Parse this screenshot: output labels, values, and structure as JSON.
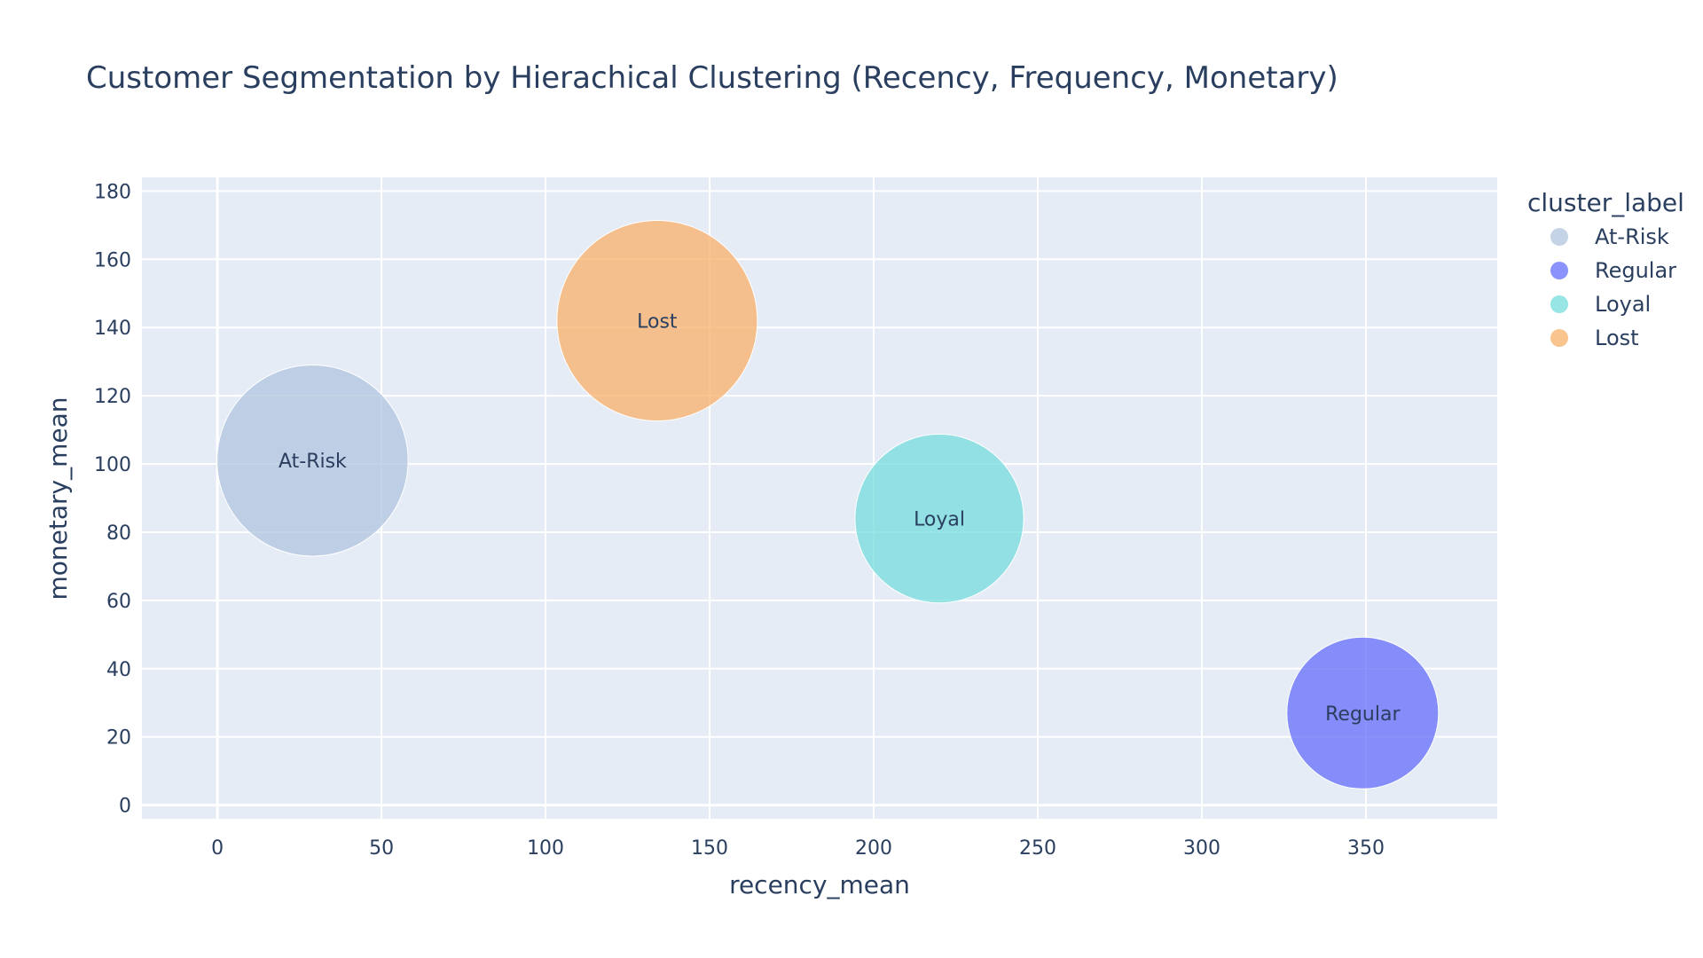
{
  "chart_data": {
    "type": "scatter",
    "title": "Customer Segmentation by Hierachical Clustering (Recency, Frequency, Monetary)",
    "xlabel": "recency_mean",
    "ylabel": "monetary_mean",
    "xlim": [
      -23,
      390
    ],
    "ylim": [
      -4,
      184
    ],
    "xticks": [
      0,
      50,
      100,
      150,
      200,
      250,
      300,
      350
    ],
    "yticks": [
      0,
      20,
      40,
      60,
      80,
      100,
      120,
      140,
      160,
      180
    ],
    "grid": true,
    "plot_background": "#e5ecf6",
    "legend": {
      "title": "cluster_label",
      "position": "top-right"
    },
    "series": [
      {
        "name": "At-Risk",
        "x": 29,
        "y": 101,
        "size": 1.0,
        "color": "#b0c4de",
        "label": "At-Risk"
      },
      {
        "name": "Regular",
        "x": 349,
        "y": 27,
        "size": 0.63,
        "color": "#636efa",
        "label": "Regular"
      },
      {
        "name": "Loyal",
        "x": 220,
        "y": 84,
        "size": 0.78,
        "color": "#76dcdc",
        "label": "Loyal"
      },
      {
        "name": "Lost",
        "x": 134,
        "y": 142,
        "size": 1.1,
        "color": "#f8b06a",
        "label": "Lost"
      }
    ]
  }
}
